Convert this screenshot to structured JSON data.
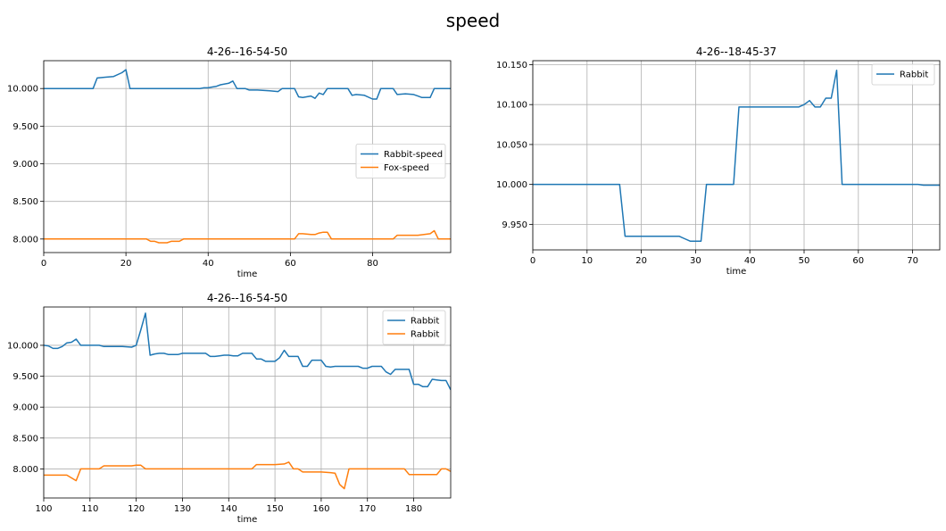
{
  "figure_title": "speed",
  "chart_data": [
    {
      "type": "line",
      "title": "4-26--16-54-50",
      "xlabel": "time",
      "ylabel": "",
      "xlim": [
        0,
        99
      ],
      "ylim": [
        7.82,
        10.37
      ],
      "xticks": [
        0,
        20,
        40,
        60,
        80
      ],
      "yticks": [
        8.0,
        8.5,
        9.0,
        9.5,
        10.0
      ],
      "ytick_labels": [
        "8.000",
        "8.500",
        "9.000",
        "9.500",
        "10.000"
      ],
      "grid": true,
      "legend_position": "center-right",
      "series": [
        {
          "name": "Rabbit-speed",
          "color": "#1f77b4",
          "x": [
            0,
            5,
            10,
            12,
            13,
            15,
            17,
            19,
            20,
            21,
            25,
            30,
            35,
            38,
            39,
            40,
            41,
            42,
            43,
            45,
            46,
            47,
            49,
            50,
            52,
            55,
            57,
            58,
            60,
            61,
            62,
            63,
            65,
            66,
            67,
            68,
            69,
            70,
            72,
            74,
            75,
            76,
            78,
            80,
            81,
            82,
            83,
            85,
            86,
            88,
            90,
            91,
            92,
            94,
            95,
            96,
            97,
            99
          ],
          "y": [
            10.0,
            10.0,
            10.0,
            10.0,
            10.14,
            10.15,
            10.16,
            10.21,
            10.25,
            10.0,
            10.0,
            10.0,
            10.0,
            10.0,
            10.01,
            10.01,
            10.02,
            10.03,
            10.05,
            10.07,
            10.1,
            10.0,
            10.0,
            9.98,
            9.98,
            9.97,
            9.96,
            10.0,
            10.0,
            10.0,
            9.89,
            9.88,
            9.9,
            9.87,
            9.94,
            9.92,
            10.0,
            10.0,
            10.0,
            10.0,
            9.91,
            9.92,
            9.91,
            9.86,
            9.86,
            10.0,
            10.0,
            10.0,
            9.92,
            9.93,
            9.92,
            9.9,
            9.88,
            9.88,
            10.0,
            10.0,
            10.0,
            10.0
          ]
        },
        {
          "name": "Fox-speed",
          "color": "#ff7f0e",
          "x": [
            0,
            10,
            20,
            25,
            26,
            27,
            28,
            30,
            31,
            33,
            34,
            35,
            40,
            50,
            60,
            61,
            62,
            63,
            65,
            66,
            67,
            68,
            69,
            70,
            75,
            80,
            85,
            86,
            88,
            90,
            91,
            94,
            95,
            96,
            97,
            99
          ],
          "y": [
            8.0,
            8.0,
            8.0,
            8.0,
            7.97,
            7.97,
            7.95,
            7.95,
            7.97,
            7.97,
            8.0,
            8.0,
            8.0,
            8.0,
            8.0,
            8.0,
            8.07,
            8.07,
            8.06,
            8.06,
            8.08,
            8.09,
            8.09,
            8.0,
            8.0,
            8.0,
            8.0,
            8.05,
            8.05,
            8.05,
            8.05,
            8.07,
            8.11,
            8.0,
            8.0,
            8.0
          ]
        }
      ]
    },
    {
      "type": "line",
      "title": "4-26--18-45-37",
      "xlabel": "time",
      "ylabel": "",
      "xlim": [
        0,
        75
      ],
      "ylim": [
        9.918,
        10.155
      ],
      "xticks": [
        0,
        10,
        20,
        30,
        40,
        50,
        60,
        70
      ],
      "yticks": [
        9.95,
        10.0,
        10.05,
        10.1,
        10.15
      ],
      "ytick_labels": [
        "9.950",
        "10.000",
        "10.050",
        "10.100",
        "10.150"
      ],
      "grid": true,
      "legend_position": "top-right",
      "series": [
        {
          "name": "Rabbit",
          "color": "#1f77b4",
          "x": [
            0,
            5,
            10,
            15,
            16,
            17,
            20,
            25,
            27,
            28,
            29,
            30,
            31,
            32,
            35,
            37,
            38,
            40,
            45,
            49,
            50,
            51,
            52,
            53,
            54,
            55,
            56,
            57,
            60,
            65,
            70,
            71,
            72,
            75
          ],
          "y": [
            10.0,
            10.0,
            10.0,
            10.0,
            10.0,
            9.935,
            9.935,
            9.935,
            9.935,
            9.932,
            9.929,
            9.929,
            9.929,
            10.0,
            10.0,
            10.0,
            10.097,
            10.097,
            10.097,
            10.097,
            10.1,
            10.105,
            10.097,
            10.097,
            10.108,
            10.108,
            10.143,
            10.0,
            10.0,
            10.0,
            10.0,
            10.0,
            9.999,
            9.999
          ]
        }
      ]
    },
    {
      "type": "line",
      "title": "4-26--16-54-50",
      "xlabel": "time",
      "ylabel": "",
      "xlim": [
        100,
        188
      ],
      "ylim": [
        7.53,
        10.62
      ],
      "xticks": [
        100,
        110,
        120,
        130,
        140,
        150,
        160,
        170,
        180
      ],
      "yticks": [
        8.0,
        8.5,
        9.0,
        9.5,
        10.0
      ],
      "ytick_labels": [
        "8.000",
        "8.500",
        "9.000",
        "9.500",
        "10.000"
      ],
      "grid": true,
      "legend_position": "top-right",
      "series": [
        {
          "name": "Rabbit",
          "color": "#1f77b4",
          "x": [
            100,
            101,
            102,
            103,
            104,
            105,
            106,
            107,
            108,
            110,
            112,
            113,
            115,
            117,
            119,
            120,
            121,
            122,
            123,
            124,
            125,
            126,
            127,
            128,
            129,
            130,
            131,
            133,
            135,
            136,
            137,
            138,
            139,
            140,
            141,
            142,
            143,
            145,
            146,
            147,
            148,
            149,
            150,
            151,
            152,
            153,
            154,
            155,
            156,
            157,
            158,
            159,
            160,
            161,
            162,
            163,
            165,
            167,
            168,
            169,
            170,
            171,
            172,
            173,
            174,
            175,
            176,
            177,
            178,
            179,
            180,
            181,
            182,
            183,
            184,
            185,
            186,
            187,
            188
          ],
          "y": [
            10.0,
            9.99,
            9.95,
            9.95,
            9.98,
            10.04,
            10.05,
            10.1,
            10.0,
            10.0,
            10.0,
            9.98,
            9.98,
            9.98,
            9.97,
            10.0,
            10.25,
            10.52,
            9.84,
            9.86,
            9.87,
            9.87,
            9.85,
            9.85,
            9.85,
            9.87,
            9.87,
            9.87,
            9.87,
            9.82,
            9.82,
            9.83,
            9.84,
            9.84,
            9.83,
            9.83,
            9.87,
            9.87,
            9.78,
            9.78,
            9.74,
            9.74,
            9.74,
            9.8,
            9.92,
            9.82,
            9.82,
            9.82,
            9.66,
            9.66,
            9.76,
            9.76,
            9.76,
            9.66,
            9.65,
            9.66,
            9.66,
            9.66,
            9.66,
            9.63,
            9.63,
            9.66,
            9.66,
            9.66,
            9.57,
            9.53,
            9.61,
            9.61,
            9.61,
            9.61,
            9.37,
            9.37,
            9.33,
            9.33,
            9.45,
            9.44,
            9.43,
            9.43,
            9.28
          ]
        },
        {
          "name": "Rabbit",
          "color": "#ff7f0e",
          "x": [
            100,
            102,
            105,
            107,
            108,
            110,
            112,
            113,
            115,
            117,
            119,
            120,
            121,
            122,
            123,
            125,
            130,
            135,
            140,
            145,
            146,
            148,
            150,
            152,
            153,
            154,
            155,
            156,
            158,
            160,
            162,
            163,
            164,
            165,
            166,
            167,
            170,
            172,
            174,
            176,
            178,
            179,
            180,
            182,
            184,
            185,
            186,
            187,
            188
          ],
          "y": [
            7.9,
            7.9,
            7.9,
            7.81,
            8.0,
            8.0,
            8.0,
            8.05,
            8.05,
            8.05,
            8.05,
            8.06,
            8.06,
            8.0,
            8.0,
            8.0,
            8.0,
            8.0,
            8.0,
            8.0,
            8.07,
            8.07,
            8.07,
            8.08,
            8.11,
            8.0,
            8.0,
            7.95,
            7.95,
            7.95,
            7.94,
            7.93,
            7.75,
            7.68,
            8.0,
            8.0,
            8.0,
            8.0,
            8.0,
            8.0,
            8.0,
            7.91,
            7.91,
            7.91,
            7.91,
            7.91,
            8.0,
            8.0,
            7.96
          ]
        }
      ]
    }
  ]
}
